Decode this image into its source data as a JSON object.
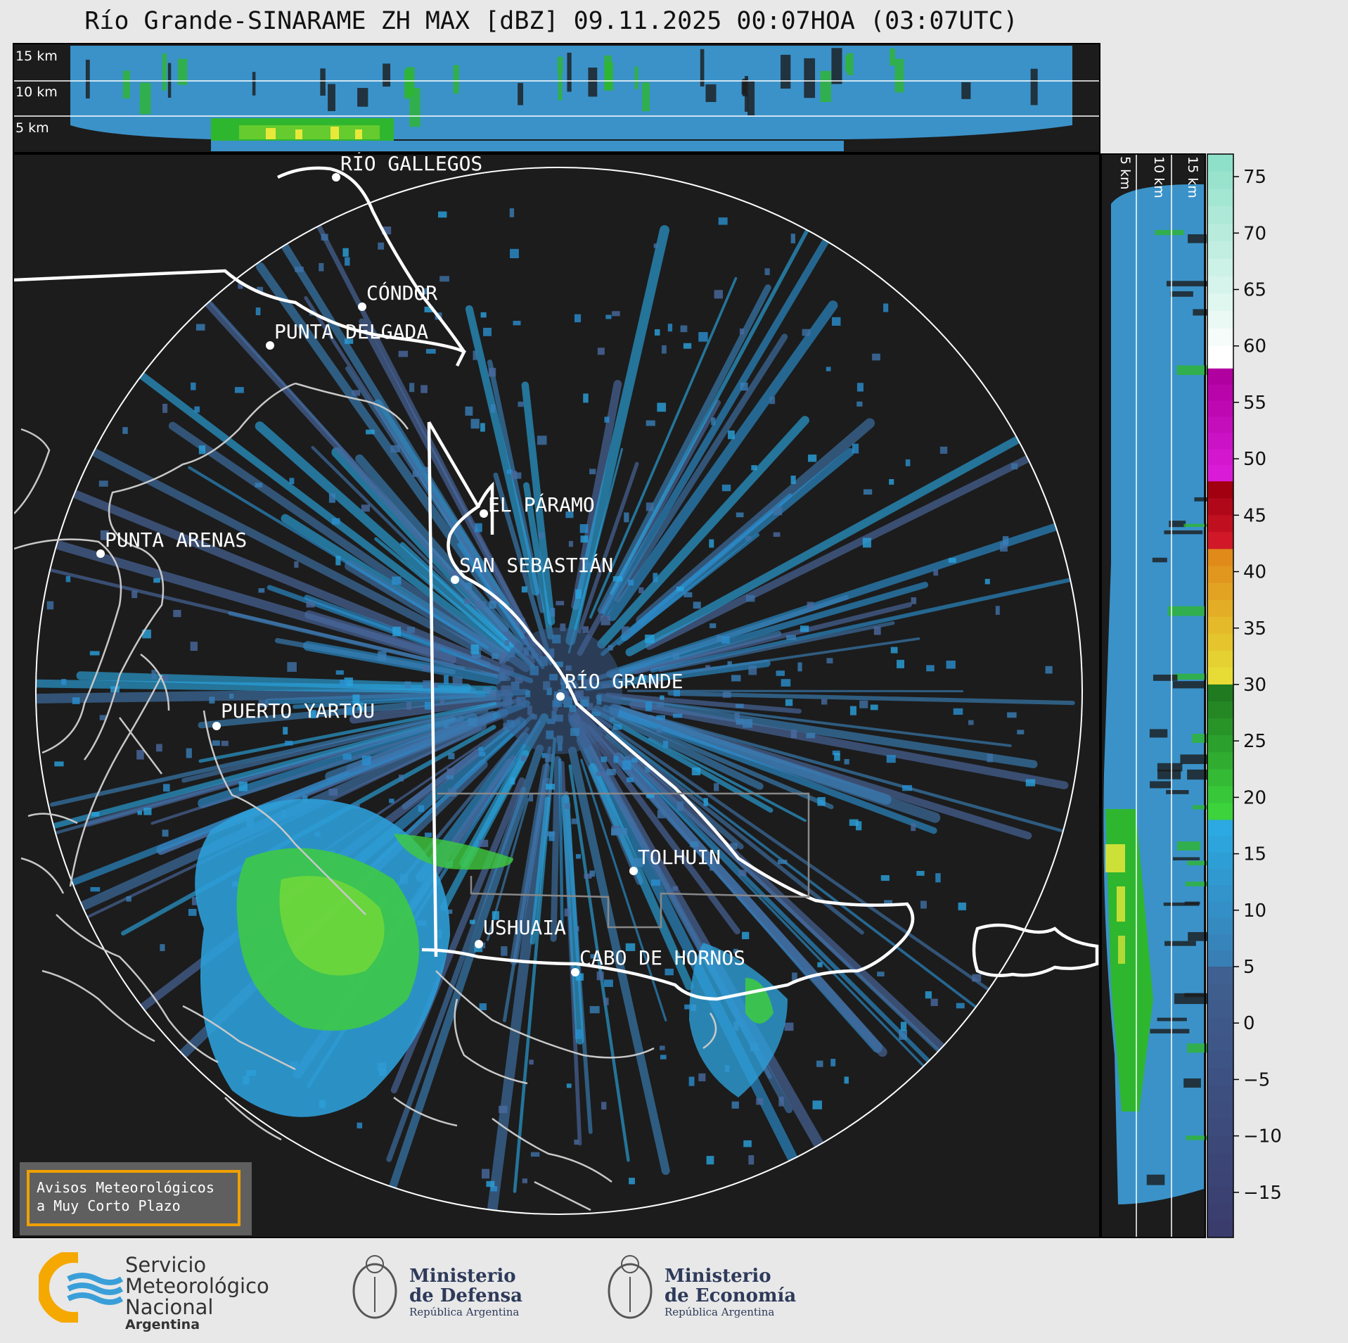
{
  "title": "Río Grande-SINARAME ZH MAX [dBZ] 09.11.2025 00:07HOA (03:07UTC)",
  "top_panel": {
    "height_labels": [
      "15 km",
      "10 km",
      "5 km"
    ]
  },
  "side_panel": {
    "height_labels": [
      "5 km",
      "10 km",
      "15 km"
    ]
  },
  "colorbar": {
    "unit": "dBZ",
    "ticks": [
      "75",
      "70",
      "65",
      "60",
      "55",
      "50",
      "45",
      "40",
      "35",
      "30",
      "25",
      "20",
      "15",
      "10",
      "5",
      "0",
      "−5",
      "−10",
      "−15"
    ],
    "colors": {
      "very_low": "#3b3b6e",
      "low": "#3f6ea6",
      "light": "#2b9ad6",
      "green": "#2ec22e",
      "yellow": "#e8e83a",
      "orange": "#e0901a",
      "red": "#d01020",
      "magenta": "#e020d0",
      "white": "#ffffff",
      "mint": "#80e0c0"
    }
  },
  "cities": {
    "rio_gallegos": "RÍO GALLEGOS",
    "condor": "CÓNDOR",
    "punta_delgada": "PUNTA DELGADA",
    "el_paramo": "EL PÁRAMO",
    "punta_arenas": "PUNTA ARENAS",
    "san_sebastian": "SAN SEBASTIÁN",
    "rio_grande": "RÍO GRANDE",
    "puerto_yartou": "PUERTO YARTOU",
    "tolhuin": "TOLHUIN",
    "ushuaia": "USHUAIA",
    "cabo_de_hornos": "CABO DE HORNOS"
  },
  "notice": {
    "line1": "Avisos Meteorológicos",
    "line2": "a Muy Corto Plazo"
  },
  "logos": {
    "smn": {
      "line1": "Servicio",
      "line2": "Meteorológico",
      "line3": "Nacional",
      "line4": "Argentina"
    },
    "defensa": {
      "line1": "Ministerio",
      "line2": "de Defensa",
      "line3": "República Argentina"
    },
    "economia": {
      "line1": "Ministerio",
      "line2": "de Economía",
      "line3": "República Argentina"
    }
  }
}
